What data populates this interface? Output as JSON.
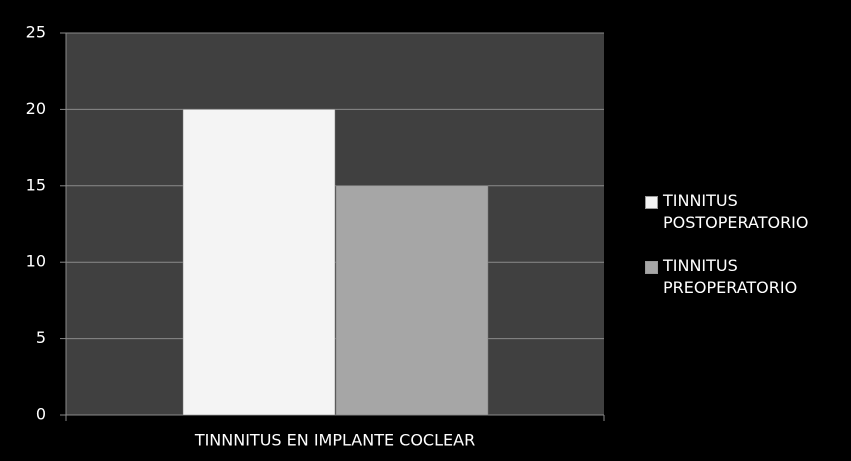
{
  "chart_data": {
    "type": "bar",
    "categories": [
      "TINNNITUS EN IMPLANTE COCLEAR"
    ],
    "series": [
      {
        "name": "TINNITUS POSTOPERATORIO",
        "color": "#f4f4f4",
        "values": [
          20
        ]
      },
      {
        "name": "TINNITUS PREOPERATORIO",
        "color": "#a6a6a6",
        "values": [
          15
        ]
      }
    ],
    "ylim": [
      0,
      25
    ],
    "yticks": [
      0,
      5,
      10,
      15,
      20,
      25
    ],
    "grid": true,
    "legend": "right"
  }
}
